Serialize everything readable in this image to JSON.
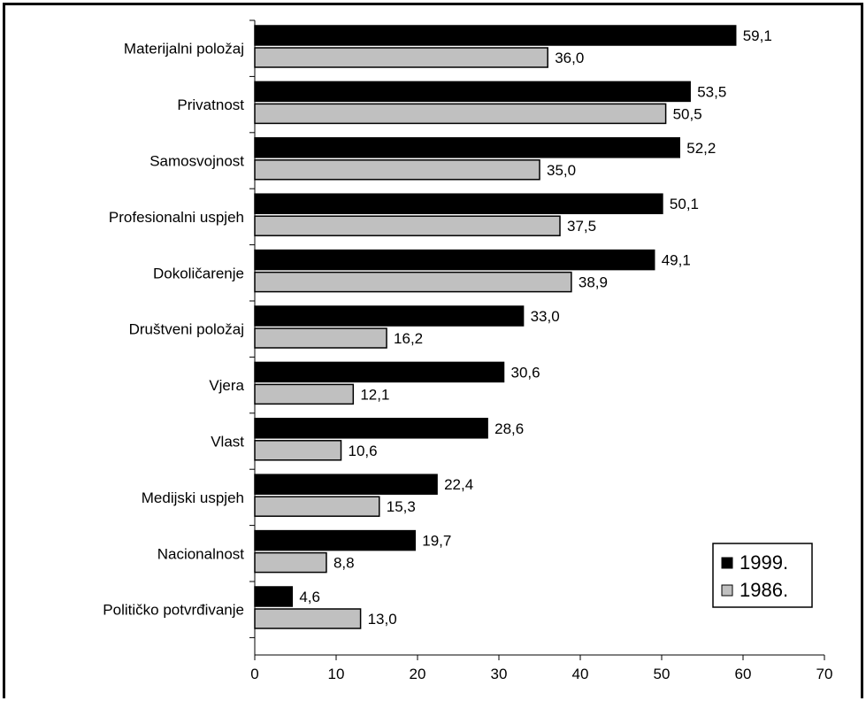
{
  "chart_data": {
    "type": "bar",
    "orientation": "horizontal",
    "categories": [
      "Materijalni položaj",
      "Privatnost",
      "Samosvojnost",
      "Profesionalni uspjeh",
      "Dokoličarenje",
      "Društveni položaj",
      "Vjera",
      "Vlast",
      "Medijski uspjeh",
      "Nacionalnost",
      "Političko potvrđivanje"
    ],
    "series": [
      {
        "name": "1999.",
        "color": "#000000",
        "values": [
          59.1,
          53.5,
          52.2,
          50.1,
          49.1,
          33.0,
          30.6,
          28.6,
          22.4,
          19.7,
          4.6
        ],
        "labels": [
          "59,1",
          "53,5",
          "52,2",
          "50,1",
          "49,1",
          "33,0",
          "30,6",
          "28,6",
          "22,4",
          "19,7",
          "4,6"
        ]
      },
      {
        "name": "1986.",
        "color": "#c0c0c0",
        "values": [
          36.0,
          50.5,
          35.0,
          37.5,
          38.9,
          16.2,
          12.1,
          10.6,
          15.3,
          8.8,
          13.0
        ],
        "labels": [
          "36,0",
          "50,5",
          "35,0",
          "37,5",
          "38,9",
          "16,2",
          "12,1",
          "10,6",
          "15,3",
          "8,8",
          "13,0"
        ]
      }
    ],
    "xlim": [
      0,
      70
    ],
    "xticks": [
      "0",
      "10",
      "20",
      "30",
      "40",
      "50",
      "60",
      "70"
    ],
    "grid": false,
    "legend_position": "bottom-right",
    "title": "",
    "xlabel": "",
    "ylabel": ""
  }
}
